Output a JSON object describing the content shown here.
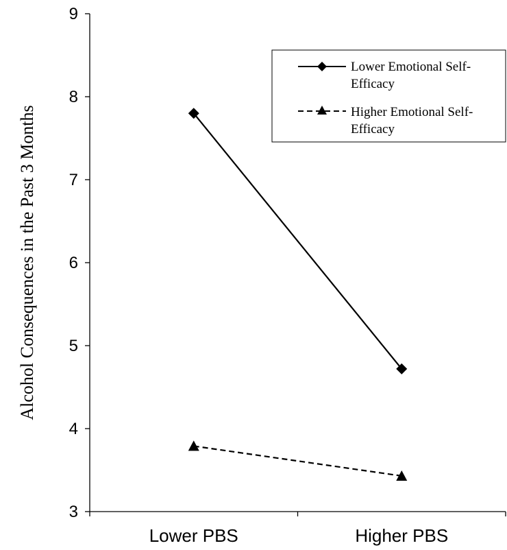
{
  "chart_data": {
    "type": "line",
    "categories": [
      "Lower PBS",
      "Higher PBS"
    ],
    "ylabel": "Alcohol Consequences in the Past 3 Months",
    "xlabel": "",
    "ylim": [
      3,
      9
    ],
    "yticks": [
      3,
      4,
      5,
      6,
      7,
      8,
      9
    ],
    "grid": false,
    "legend_position": "top-right",
    "series": [
      {
        "name_lines": [
          "Lower Emotional Self-",
          "Efficacy"
        ],
        "values": [
          7.8,
          4.72
        ],
        "marker": "diamond",
        "line_style": "solid",
        "color": "#000000"
      },
      {
        "name_lines": [
          "Higher Emotional Self-",
          "Efficacy"
        ],
        "values": [
          3.79,
          3.43
        ],
        "marker": "triangle",
        "line_style": "dashed",
        "color": "#000000"
      }
    ]
  }
}
